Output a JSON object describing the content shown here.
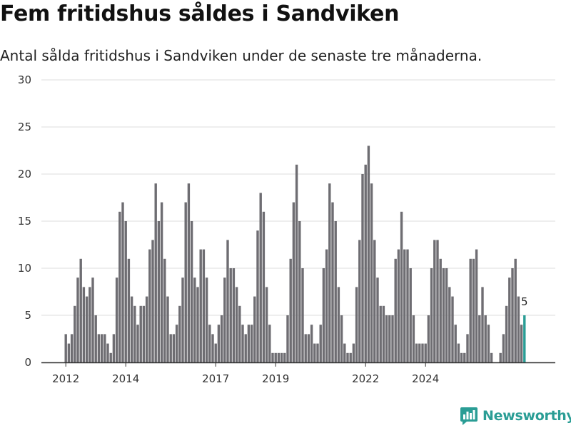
{
  "title": "Fem fritidshus såldes i Sandviken",
  "subtitle": "Antal sålda fritidshus i Sandviken under de senaste tre månaderna.",
  "brand": {
    "name": "Newsworthy",
    "icon": "newsworthy-logo-icon"
  },
  "colors": {
    "bar": "#6e6d72",
    "highlight": "#2a9d95",
    "grid": "#dddddd",
    "axis": "#333333"
  },
  "chart_data": {
    "type": "bar",
    "title": "Fem fritidshus såldes i Sandviken",
    "subtitle": "Antal sålda fritidshus i Sandviken under de senaste tre månaderna.",
    "xlabel": "",
    "ylabel": "",
    "ylim": [
      0,
      30
    ],
    "yticks": [
      0,
      5,
      10,
      15,
      20,
      25,
      30
    ],
    "x_tick_labels": [
      "2012",
      "2014",
      "2017",
      "2019",
      "2022",
      "2024"
    ],
    "x_tick_positions": [
      0,
      20,
      50,
      70,
      100,
      120
    ],
    "grid": true,
    "highlight_last": true,
    "last_value_label": "5",
    "values": [
      3,
      2,
      3,
      6,
      9,
      11,
      8,
      7,
      8,
      9,
      5,
      3,
      3,
      3,
      2,
      1,
      3,
      9,
      16,
      17,
      15,
      11,
      7,
      6,
      4,
      6,
      6,
      7,
      12,
      13,
      19,
      15,
      17,
      11,
      7,
      3,
      3,
      4,
      6,
      9,
      17,
      19,
      15,
      9,
      8,
      12,
      12,
      9,
      4,
      3,
      2,
      4,
      5,
      9,
      13,
      10,
      10,
      8,
      6,
      4,
      3,
      4,
      4,
      7,
      14,
      18,
      16,
      8,
      4,
      1,
      1,
      1,
      1,
      1,
      5,
      11,
      17,
      21,
      15,
      10,
      3,
      3,
      4,
      2,
      2,
      4,
      10,
      12,
      19,
      17,
      15,
      8,
      5,
      2,
      1,
      1,
      2,
      8,
      13,
      20,
      21,
      23,
      19,
      13,
      9,
      6,
      6,
      5,
      5,
      5,
      11,
      12,
      16,
      12,
      12,
      10,
      5,
      2,
      2,
      2,
      2,
      5,
      10,
      13,
      13,
      11,
      10,
      10,
      8,
      7,
      4,
      2,
      1,
      1,
      3,
      11,
      11,
      12,
      5,
      8,
      5,
      4,
      1,
      0,
      0,
      1,
      3,
      6,
      9,
      10,
      11,
      7,
      4,
      5
    ]
  }
}
